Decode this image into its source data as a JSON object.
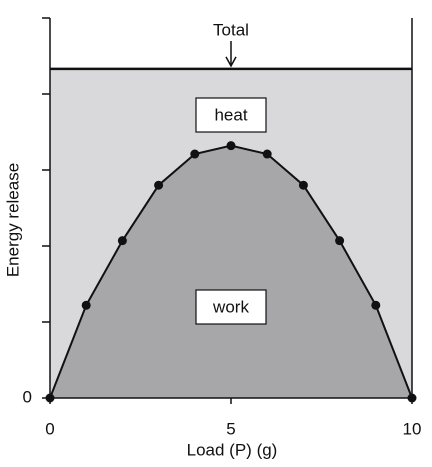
{
  "chart_data": {
    "type": "area",
    "x_label": "Load (P)  (g)",
    "y_label": "Energy release",
    "xlim": [
      0,
      10
    ],
    "xticks": [
      0,
      5,
      10
    ],
    "ylim": [
      0,
      5
    ],
    "yticks": [
      0,
      {
        "value": 1,
        "label": null
      },
      {
        "value": 2,
        "label": null
      },
      {
        "value": 3,
        "label": null
      },
      {
        "value": 4,
        "label": null
      },
      {
        "value": 5,
        "label": null
      }
    ],
    "series": [
      {
        "name": "Total",
        "color": "#d9d9db",
        "x": [
          0,
          10
        ],
        "values": [
          4.33,
          4.33
        ]
      },
      {
        "name": "work",
        "color": "#a7a7a9",
        "x": [
          0,
          1,
          2,
          3,
          4,
          5,
          6,
          7,
          8,
          9,
          10
        ],
        "values": [
          0,
          1.22,
          2.07,
          2.8,
          3.21,
          3.32,
          3.21,
          2.8,
          2.07,
          1.22,
          0
        ]
      }
    ],
    "annotations": [
      "heat"
    ]
  }
}
